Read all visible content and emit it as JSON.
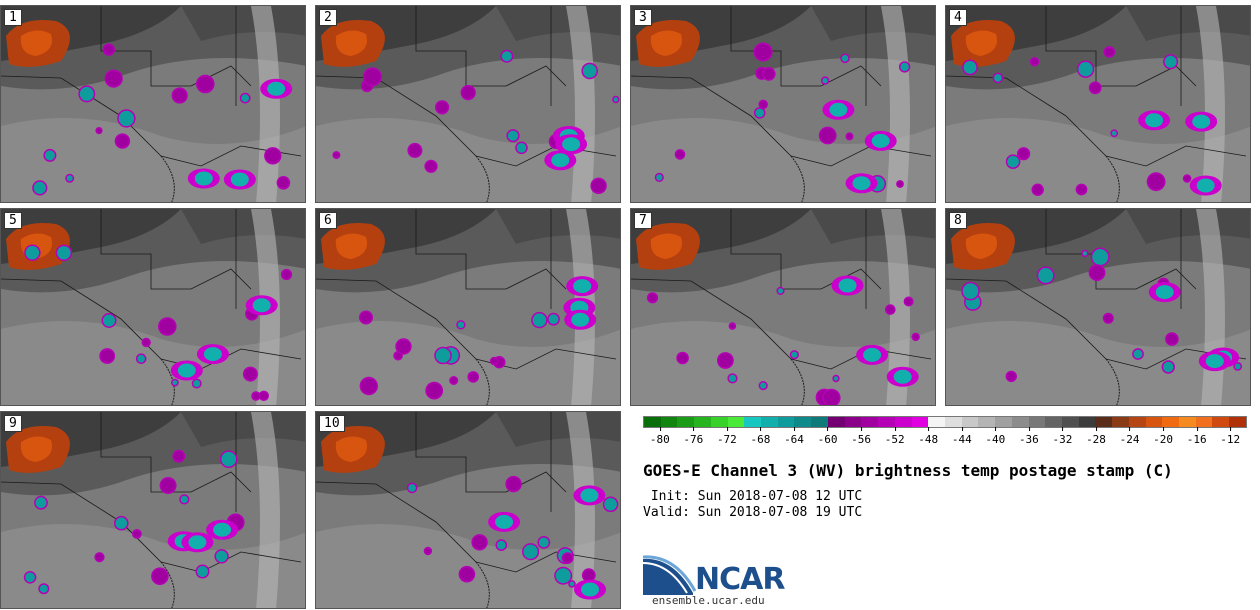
{
  "panels": [
    {
      "label": "1"
    },
    {
      "label": "2"
    },
    {
      "label": "3"
    },
    {
      "label": "4"
    },
    {
      "label": "5"
    },
    {
      "label": "6"
    },
    {
      "label": "7"
    },
    {
      "label": "8"
    },
    {
      "label": "9"
    },
    {
      "label": "10"
    }
  ],
  "colorbar": {
    "colors": [
      "#0a6e0a",
      "#12850f",
      "#1b9c16",
      "#27b51f",
      "#38d12a",
      "#4cea38",
      "#18c8c0",
      "#11b0ad",
      "#0f9c9c",
      "#0e8a8a",
      "#0f7a7a",
      "#730073",
      "#8a0089",
      "#a000a0",
      "#b600b6",
      "#cc00cc",
      "#e000e0",
      "#f4f4f4",
      "#dedede",
      "#c8c8c8",
      "#b4b4b4",
      "#a0a0a0",
      "#8c8c8c",
      "#787878",
      "#646464",
      "#505050",
      "#3c3c3c",
      "#5a2d1a",
      "#8a3a14",
      "#b54512",
      "#d8550f",
      "#f06a12",
      "#f58a20",
      "#f07020",
      "#d04a10",
      "#b03008"
    ],
    "ticks": [
      "-80",
      "-76",
      "-72",
      "-68",
      "-64",
      "-60",
      "-56",
      "-52",
      "-48",
      "-44",
      "-40",
      "-36",
      "-32",
      "-28",
      "-24",
      "-20",
      "-16",
      "-12"
    ],
    "tick_values": [
      -80,
      -76,
      -72,
      -68,
      -64,
      -60,
      -56,
      -52,
      -48,
      -44,
      -40,
      -36,
      -32,
      -28,
      -24,
      -20,
      -16,
      -12
    ],
    "range": [
      -82,
      -10
    ]
  },
  "title": "GOES-E Channel 3 (WV) brightness temp postage stamp (C)",
  "init": " Init: Sun 2018-07-08 12 UTC",
  "valid": "Valid: Sun 2018-07-08 19 UTC",
  "logo": {
    "name": "NCAR",
    "url": "ensemble.ucar.edu"
  }
}
